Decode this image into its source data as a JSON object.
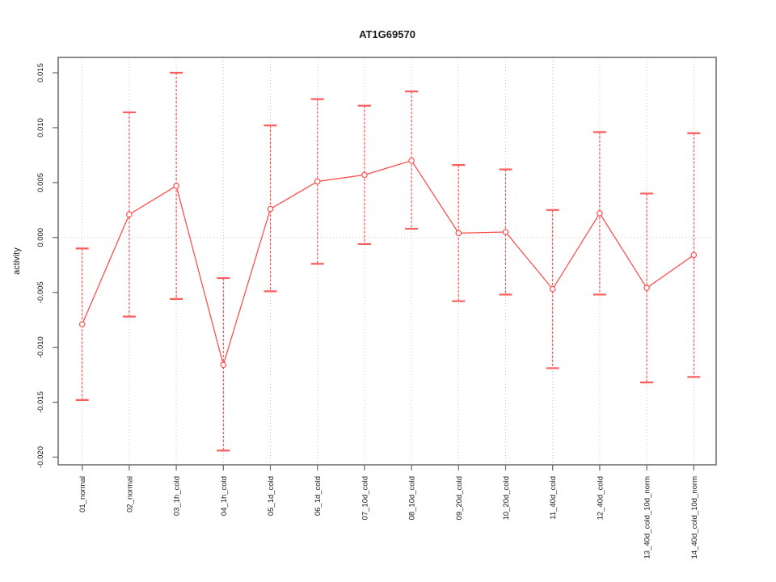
{
  "figure": {
    "title": "AT1G69570",
    "ylabel": "activity"
  },
  "chart_data": {
    "type": "line",
    "title": "AT1G69570",
    "xlabel": "",
    "ylabel": "activity",
    "categories": [
      "01_normal",
      "02_normal",
      "03_1h_cold",
      "04_1h_cold",
      "05_1d_cold",
      "06_1d_cold",
      "07_10d_cold",
      "08_10d_cold",
      "09_20d_cold",
      "10_20d_cold",
      "11_40d_cold",
      "12_40d_cold",
      "13_40d_cold_10d_norm",
      "14_40d_cold_10d_norm"
    ],
    "series": [
      {
        "name": "activity",
        "values": [
          -0.0079,
          0.0021,
          0.0047,
          -0.0116,
          0.0026,
          0.0051,
          0.0057,
          0.007,
          0.0004,
          0.0005,
          -0.0047,
          0.0022,
          -0.0046,
          -0.0016
        ],
        "error_upper": [
          -0.001,
          0.0114,
          0.015,
          -0.0037,
          0.0102,
          0.0126,
          0.012,
          0.0133,
          0.0066,
          0.0062,
          0.0025,
          0.0096,
          0.004,
          0.0095
        ],
        "error_lower": [
          -0.0148,
          -0.0072,
          -0.0056,
          -0.0194,
          -0.0049,
          -0.0024,
          -0.0006,
          0.0008,
          -0.0058,
          -0.0052,
          -0.0119,
          -0.0052,
          -0.0132,
          -0.0127
        ]
      }
    ],
    "ylim": [
      -0.0207,
      0.0164
    ],
    "ytick_values": [
      0.015,
      0.01,
      0.005,
      0.0,
      -0.005,
      -0.01,
      -0.015,
      -0.02
    ],
    "ytick_labels": [
      "0.015",
      "0.010",
      "0.005",
      "0.000",
      "-0.005",
      "-0.010",
      "-0.015",
      "-0.020"
    ],
    "grid": {
      "vertical_per_category": true,
      "horizontal_at_zero": true,
      "style": "dotted"
    },
    "legend": "none",
    "point_style": "open-circle",
    "error_line_style": "dashed",
    "colors": {
      "series": "#ff4444",
      "error_cap": "#ff5c5c",
      "grid": "#c8c8c8",
      "box": "#666666",
      "tick": "#666666",
      "text": "#1a1a1a"
    }
  }
}
